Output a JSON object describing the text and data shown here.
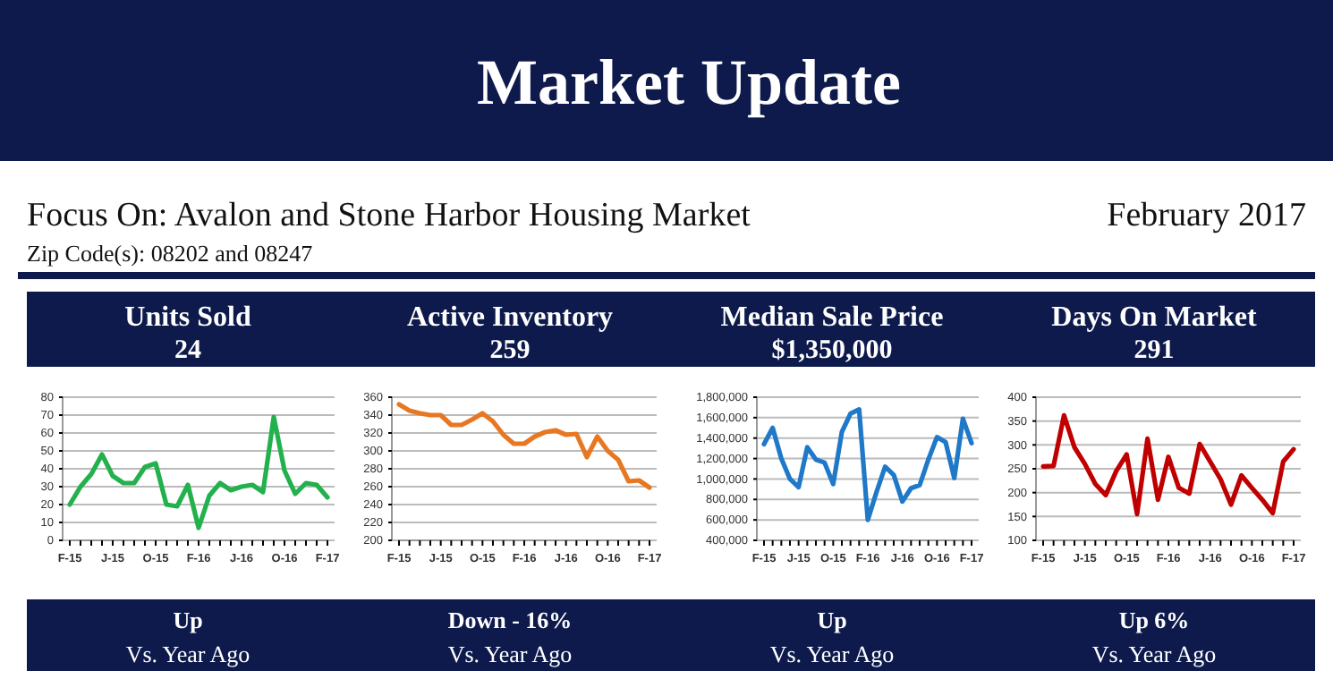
{
  "chart_data": [
    {
      "type": "other",
      "title": "Market Update",
      "subtitle": "Focus On: Avalon and Stone Harbor Housing Market",
      "annotations": [
        "February 2017",
        "Zip Code(s): 08202 and 08247"
      ]
    },
    {
      "type": "line",
      "title": "Units Sold",
      "subtitle": "24",
      "annotations": [
        "Up",
        "Vs. Year Ago"
      ],
      "grid": "y",
      "marker": "none",
      "categories": [
        "F-15",
        null,
        null,
        null,
        "J-15",
        null,
        null,
        null,
        "O-15",
        null,
        null,
        null,
        "F-16",
        null,
        null,
        null,
        "J-16",
        null,
        null,
        null,
        "O-16",
        null,
        null,
        null,
        "F-17"
      ],
      "series": [
        {
          "color": "#22b14c",
          "values": [
            20,
            30,
            37,
            48,
            36,
            32,
            32,
            41,
            43,
            20,
            19,
            31,
            7,
            25,
            32,
            28,
            30,
            31,
            27,
            69,
            39,
            26,
            32,
            31,
            24
          ]
        }
      ],
      "ylim": [
        0,
        80
      ],
      "yticks": [
        0,
        10,
        20,
        30,
        40,
        50,
        60,
        70,
        80
      ]
    },
    {
      "type": "line",
      "title": "Active Inventory",
      "subtitle": "259",
      "annotations": [
        "Down  - 16%",
        "Vs. Year Ago"
      ],
      "grid": "y",
      "marker": "none",
      "categories": [
        "F-15",
        null,
        null,
        null,
        "J-15",
        null,
        null,
        null,
        "O-15",
        null,
        null,
        null,
        "F-16",
        null,
        null,
        null,
        "J-16",
        null,
        null,
        null,
        "O-16",
        null,
        null,
        null,
        "F-17"
      ],
      "series": [
        {
          "color": "#e87722",
          "values": [
            352,
            345,
            342,
            340,
            340,
            329,
            329,
            335,
            342,
            333,
            318,
            308,
            308,
            316,
            321,
            323,
            318,
            319,
            293,
            316,
            300,
            290,
            266,
            267,
            259
          ]
        }
      ],
      "ylim": [
        200,
        360
      ],
      "yticks": [
        200,
        220,
        240,
        260,
        280,
        300,
        320,
        340,
        360
      ]
    },
    {
      "type": "line",
      "title": "Median Sale Price",
      "subtitle": "$1,350,000",
      "annotations": [
        "Up",
        "Vs. Year Ago"
      ],
      "grid": "y",
      "marker": "none",
      "categories": [
        "F-15",
        null,
        null,
        null,
        "J-15",
        null,
        null,
        null,
        "O-15",
        null,
        null,
        null,
        "F-16",
        null,
        null,
        null,
        "J-16",
        null,
        null,
        null,
        "O-16",
        null,
        null,
        null,
        "F-17"
      ],
      "series": [
        {
          "color": "#1f78c8",
          "values": [
            1340000,
            1500000,
            1200000,
            1000000,
            920000,
            1310000,
            1190000,
            1160000,
            950000,
            1460000,
            1640000,
            1680000,
            600000,
            870000,
            1120000,
            1040000,
            780000,
            910000,
            940000,
            1190000,
            1410000,
            1360000,
            1010000,
            1590000,
            1350000
          ]
        }
      ],
      "ylim": [
        400000,
        1800000
      ],
      "yticks": [
        {
          "value": 400000,
          "label": "400,000"
        },
        {
          "value": 600000,
          "label": "600,000"
        },
        {
          "value": 800000,
          "label": "800,000"
        },
        {
          "value": 1000000,
          "label": "1,000,000"
        },
        {
          "value": 1200000,
          "label": "1,200,000"
        },
        {
          "value": 1400000,
          "label": "1,400,000"
        },
        {
          "value": 1600000,
          "label": "1,600,000"
        },
        {
          "value": 1800000,
          "label": "1,800,000"
        }
      ]
    },
    {
      "type": "line",
      "title": "Days On Market",
      "subtitle": "291",
      "annotations": [
        "Up  6%",
        "Vs. Year Ago"
      ],
      "grid": "y",
      "marker": "none",
      "categories": [
        "F-15",
        null,
        null,
        null,
        "J-15",
        null,
        null,
        null,
        "O-15",
        null,
        null,
        null,
        "F-16",
        null,
        null,
        null,
        "J-16",
        null,
        null,
        null,
        "O-16",
        null,
        null,
        null,
        "F-17"
      ],
      "series": [
        {
          "color": "#c00000",
          "values": [
            255,
            256,
            362,
            295,
            260,
            218,
            195,
            245,
            280,
            155,
            313,
            185,
            275,
            210,
            198,
            302,
            265,
            228,
            175,
            236,
            210,
            185,
            157,
            265,
            291
          ]
        }
      ],
      "ylim": [
        100,
        400
      ],
      "yticks": [
        100,
        150,
        200,
        250,
        300,
        350,
        400
      ]
    }
  ]
}
